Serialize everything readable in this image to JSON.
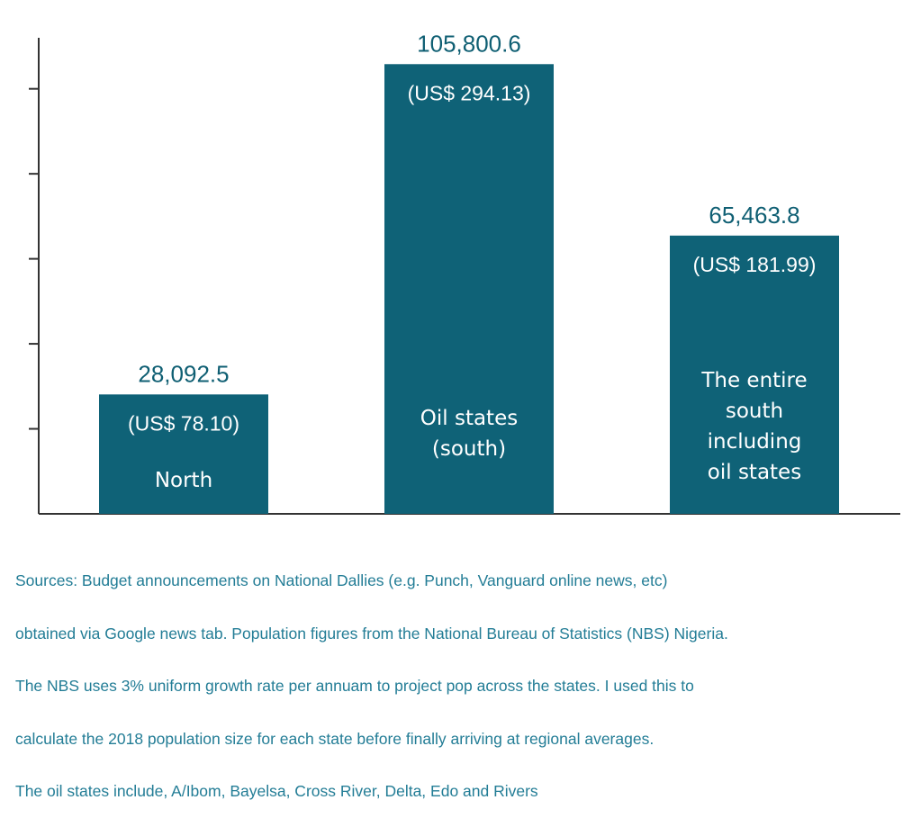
{
  "chart_data": {
    "type": "bar",
    "categories": [
      "North",
      "Oil states (south)",
      "The entire south including oil states"
    ],
    "category_label_lines": [
      [
        "North"
      ],
      [
        "Oil states",
        "(south)"
      ],
      [
        "The entire",
        "south",
        "including",
        "oil states"
      ]
    ],
    "values": [
      28092.5,
      105800.6,
      65463.8
    ],
    "value_labels": [
      "28,092.5",
      "105,800.6",
      "65,463.8"
    ],
    "usd_labels": [
      "(US$ 78.10)",
      "(US$ 294.13)",
      "(US$ 181.99)"
    ],
    "title": "",
    "xlabel": "",
    "ylabel": "",
    "ylim": [
      0,
      112000
    ],
    "yticks": [
      0,
      20000,
      40000,
      60000,
      80000,
      100000
    ],
    "ytick_labels_shown": false,
    "grid": false,
    "bar_color": "#0f6277",
    "label_color": "#0f5f73"
  },
  "notes": [
    "Sources: Budget announcements on National Dallies (e.g. Punch, Vanguard online news, etc)",
    "obtained via Google news tab. Population figures from the National Bureau of Statistics (NBS) Nigeria.",
    "The NBS uses 3% uniform growth rate per annuam to project pop across the states. I used this to",
    "calculate the 2018 population size for each state before finally arriving at regional averages.",
    "The oil states include, A/Ibom, Bayelsa, Cross River, Delta, Edo and Rivers"
  ]
}
